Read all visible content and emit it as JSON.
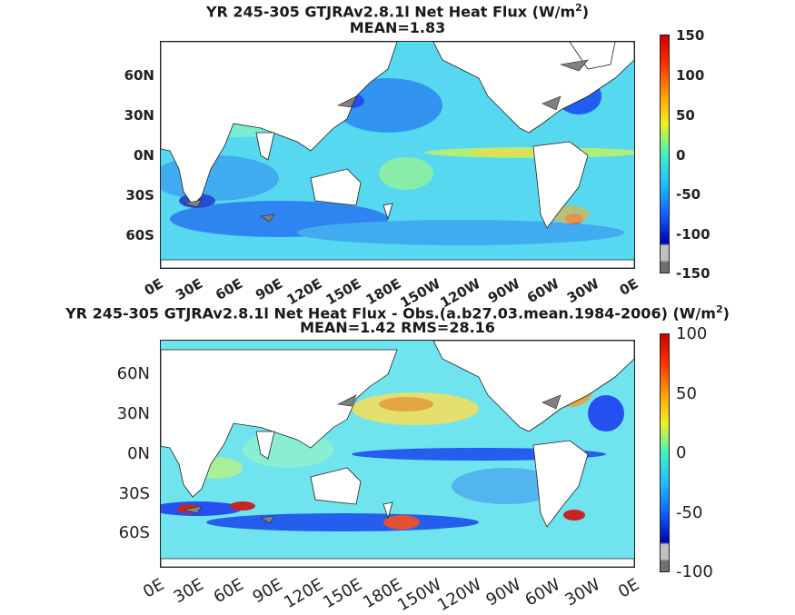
{
  "chart_data": [
    {
      "type": "heatmap",
      "title": "YR 245-305 GTJRAv2.8.1l  Net Heat Flux (W/m",
      "title_sup": "2",
      "title_end": ")",
      "subtitle": "MEAN=1.83",
      "y_ticks": [
        "60N",
        "30N",
        "0N",
        "30S",
        "60S"
      ],
      "x_ticks": [
        "0E",
        "30E",
        "60E",
        "90E",
        "120E",
        "150E",
        "180E",
        "150W",
        "120W",
        "90W",
        "60W",
        "30W",
        "0E"
      ],
      "colorbar": {
        "min": -150,
        "max": 150,
        "ticks": [
          "150",
          "100",
          "50",
          "0",
          "-50",
          "-100",
          "-150"
        ]
      },
      "colors": {
        "ocean_base": "#55d8f0",
        "land": "#ffffff",
        "ice": "#808080"
      }
    },
    {
      "type": "heatmap",
      "title": "YR 245-305 GTJRAv2.8.1l  Net Heat Flux - Obs.(a.b27.03.mean.1984-2006) (W/m",
      "title_sup": "2",
      "title_end": ")",
      "subtitle": "MEAN=1.42 RMS=28.16",
      "y_ticks": [
        "60N",
        "30N",
        "0N",
        "30S",
        "60S"
      ],
      "x_ticks": [
        "0E",
        "30E",
        "60E",
        "90E",
        "120E",
        "150E",
        "180E",
        "150W",
        "120W",
        "90W",
        "60W",
        "30W",
        "0E"
      ],
      "colorbar": {
        "min": -100,
        "max": 100,
        "ticks": [
          "100",
          "50",
          "0",
          "-50",
          "-100"
        ]
      },
      "colors": {
        "ocean_base": "#6fe4ee",
        "land": "#ffffff",
        "ice": "#808080"
      }
    }
  ]
}
